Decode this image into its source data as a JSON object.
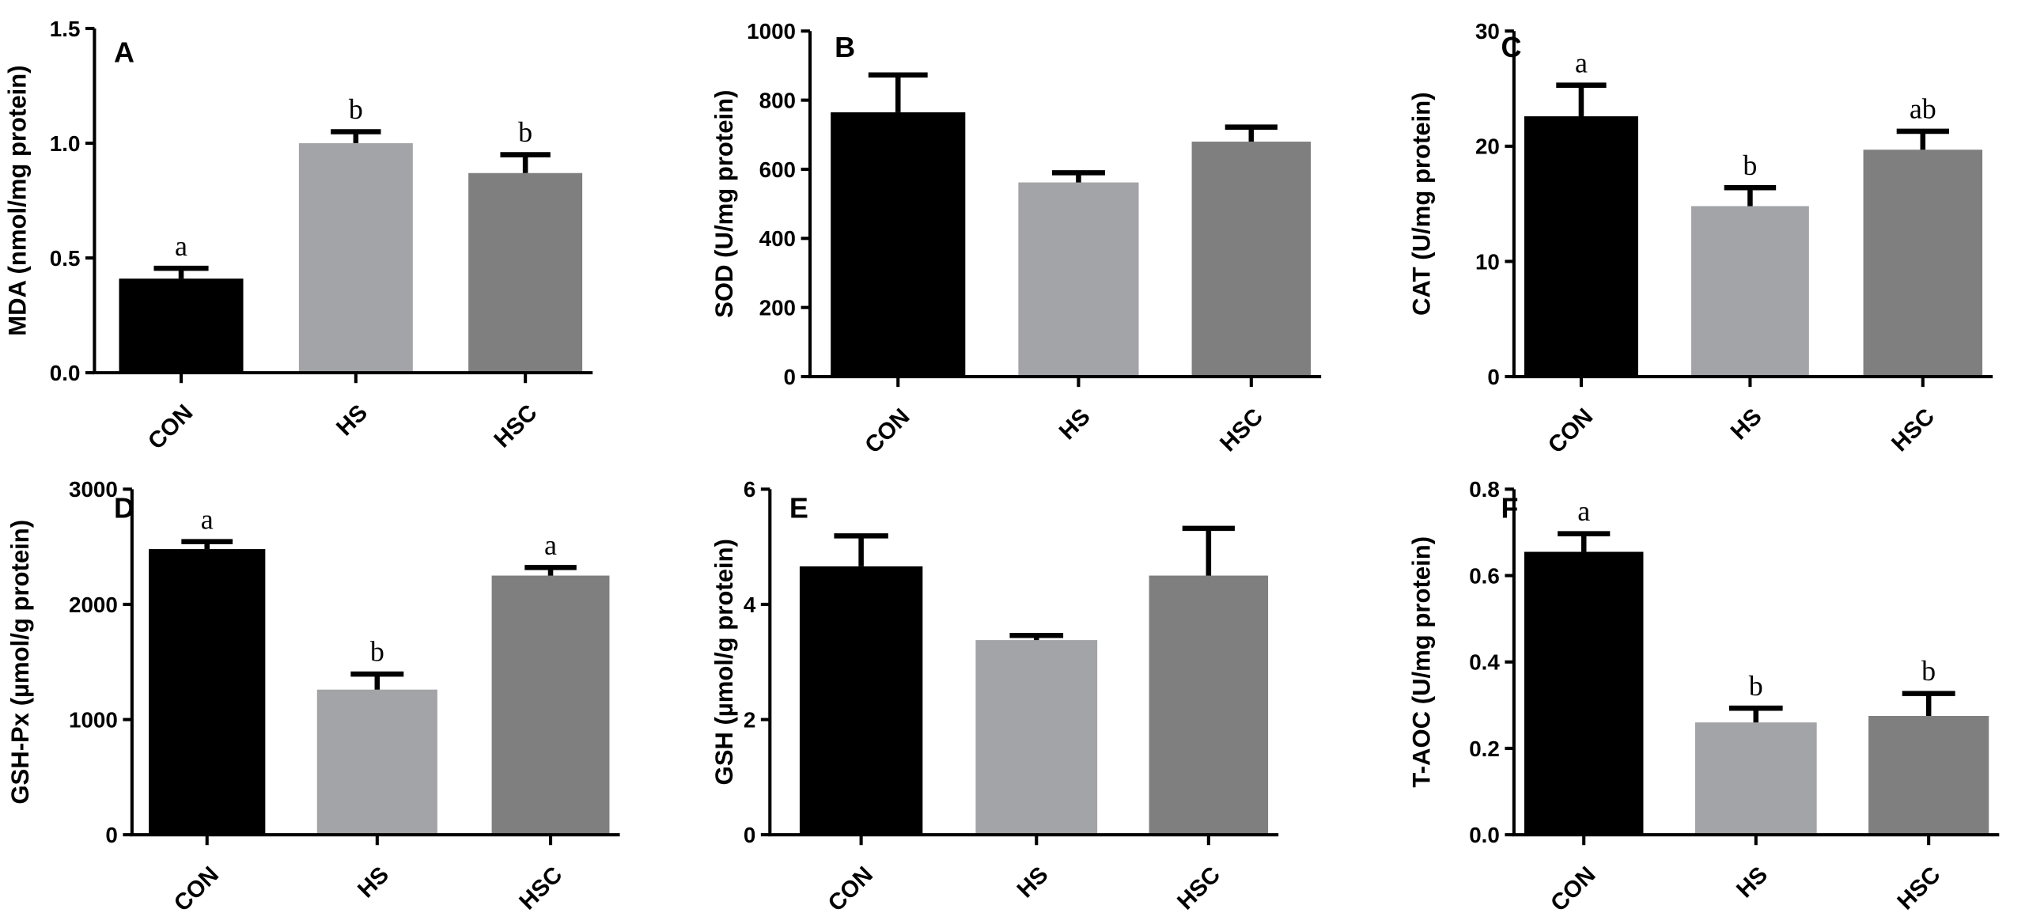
{
  "chart_data": [
    {
      "type": "bar",
      "panel": "A",
      "categories": [
        "CON",
        "HS",
        "HSC"
      ],
      "values": [
        0.41,
        1.0,
        0.87
      ],
      "errors": [
        0.045,
        0.05,
        0.08
      ],
      "significance": [
        "a",
        "b",
        "b"
      ],
      "colors": [
        "#000000",
        "#a3a4a7",
        "#7f7f7f"
      ],
      "ylabel": "MDA (nmol/mg protein)",
      "ylim": [
        0,
        1.5
      ],
      "yticks": [
        0.0,
        0.5,
        1.0,
        1.5
      ],
      "ytick_labels": [
        "0.0",
        "0.5",
        "1.0",
        "1.5"
      ]
    },
    {
      "type": "bar",
      "panel": "B",
      "categories": [
        "CON",
        "HS",
        "HSC"
      ],
      "values": [
        765,
        562,
        680
      ],
      "errors": [
        108,
        28,
        42
      ],
      "significance": [
        "",
        "",
        ""
      ],
      "colors": [
        "#000000",
        "#a3a4a7",
        "#7f7f7f"
      ],
      "ylabel": "SOD (U/mg protein)",
      "ylim": [
        0,
        1000
      ],
      "yticks": [
        0,
        200,
        400,
        600,
        800,
        1000
      ],
      "ytick_labels": [
        "0",
        "200",
        "400",
        "600",
        "800",
        "1000"
      ]
    },
    {
      "type": "bar",
      "panel": "C",
      "categories": [
        "CON",
        "HS",
        "HSC"
      ],
      "values": [
        22.6,
        14.8,
        19.7
      ],
      "errors": [
        2.7,
        1.6,
        1.6
      ],
      "significance": [
        "a",
        "b",
        "ab"
      ],
      "colors": [
        "#000000",
        "#a3a4a7",
        "#7f7f7f"
      ],
      "ylabel": "CAT (U/mg protein)",
      "ylim": [
        0,
        30
      ],
      "yticks": [
        0,
        10,
        20,
        30
      ],
      "ytick_labels": [
        "0",
        "10",
        "20",
        "30"
      ]
    },
    {
      "type": "bar",
      "panel": "D",
      "categories": [
        "CON",
        "HS",
        "HSC"
      ],
      "values": [
        2480,
        1260,
        2250
      ],
      "errors": [
        65,
        135,
        70
      ],
      "significance": [
        "a",
        "b",
        "a"
      ],
      "colors": [
        "#000000",
        "#a3a4a7",
        "#7f7f7f"
      ],
      "ylabel": "GSH-Px (µmol/g protein)",
      "ylim": [
        0,
        3000
      ],
      "yticks": [
        0,
        1000,
        2000,
        3000
      ],
      "ytick_labels": [
        "0",
        "1000",
        "2000",
        "3000"
      ]
    },
    {
      "type": "bar",
      "panel": "E",
      "categories": [
        "CON",
        "HS",
        "HSC"
      ],
      "values": [
        4.66,
        3.38,
        4.5
      ],
      "errors": [
        0.53,
        0.08,
        0.82
      ],
      "significance": [
        "",
        "",
        ""
      ],
      "colors": [
        "#000000",
        "#a3a4a7",
        "#7f7f7f"
      ],
      "ylabel": "GSH (µmol/g protein)",
      "ylim": [
        0,
        6
      ],
      "yticks": [
        0,
        2,
        4,
        6
      ],
      "ytick_labels": [
        "0",
        "2",
        "4",
        "6"
      ]
    },
    {
      "type": "bar",
      "panel": "F",
      "categories": [
        "CON",
        "HS",
        "HSC"
      ],
      "values": [
        0.655,
        0.26,
        0.275
      ],
      "errors": [
        0.042,
        0.033,
        0.052
      ],
      "significance": [
        "a",
        "b",
        "b"
      ],
      "colors": [
        "#000000",
        "#a3a4a7",
        "#7f7f7f"
      ],
      "ylabel": "T-AOC (U/mg protein)",
      "ylim": [
        0,
        0.8
      ],
      "yticks": [
        0.0,
        0.2,
        0.4,
        0.6,
        0.8
      ],
      "ytick_labels": [
        "0.0",
        "0.2",
        "0.4",
        "0.6",
        "0.8"
      ]
    }
  ]
}
